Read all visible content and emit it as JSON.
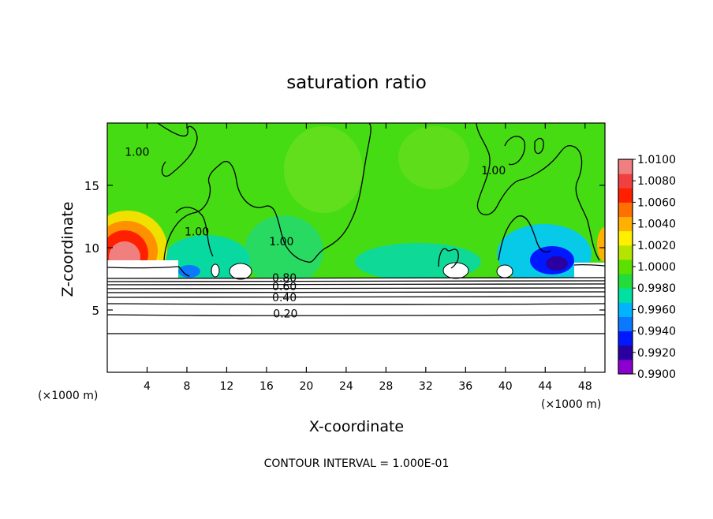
{
  "chart_data": {
    "type": "heatmap",
    "title": "saturation ratio",
    "xlabel": "X-coordinate",
    "ylabel": "Z-coordinate",
    "x_unit_left": "(×1000 m)",
    "x_unit_right": "(×1000 m)",
    "footer": "CONTOUR INTERVAL = 1.000E-01",
    "xlim": [
      0,
      50
    ],
    "ylim": [
      0,
      20
    ],
    "x_ticks": [
      "4",
      "8",
      "12",
      "16",
      "20",
      "24",
      "28",
      "32",
      "36",
      "40",
      "44",
      "48"
    ],
    "x_tick_values": [
      4,
      8,
      12,
      16,
      20,
      24,
      28,
      32,
      36,
      40,
      44,
      48
    ],
    "y_ticks": [
      "5",
      "10",
      "15"
    ],
    "y_tick_values": [
      5,
      10,
      15
    ],
    "colorbar": {
      "ticks": [
        "1.0100",
        "1.0080",
        "1.0060",
        "1.0040",
        "1.0020",
        "1.0000",
        "0.9980",
        "0.9960",
        "0.9940",
        "0.9920",
        "0.9900"
      ],
      "values": [
        1.01,
        1.008,
        1.006,
        1.004,
        1.002,
        1.0,
        0.998,
        0.996,
        0.994,
        0.992,
        0.99
      ],
      "colors": [
        "#8b00d0",
        "#2a00a0",
        "#0018ff",
        "#0a78ff",
        "#00b4ff",
        "#00e0a0",
        "#22dc3c",
        "#5ce000",
        "#b4e400",
        "#fff000",
        "#ffb000",
        "#ff7000",
        "#ff2000",
        "#f04040",
        "#f08080"
      ]
    },
    "contour_labels": [
      {
        "text": "0.20",
        "x": 17.9,
        "y": 4.7
      },
      {
        "text": "0.40",
        "x": 17.8,
        "y": 6.0
      },
      {
        "text": "0.60",
        "x": 17.8,
        "y": 6.9
      },
      {
        "text": "0.80",
        "x": 17.8,
        "y": 7.6
      },
      {
        "text": "1.00",
        "x": 17.5,
        "y": 10.5
      },
      {
        "text": "1.00",
        "x": 9.0,
        "y": 11.3
      },
      {
        "text": "1.00",
        "x": 38.8,
        "y": 16.2
      },
      {
        "text": "1.00",
        "x": 3.0,
        "y": 17.7
      }
    ]
  }
}
